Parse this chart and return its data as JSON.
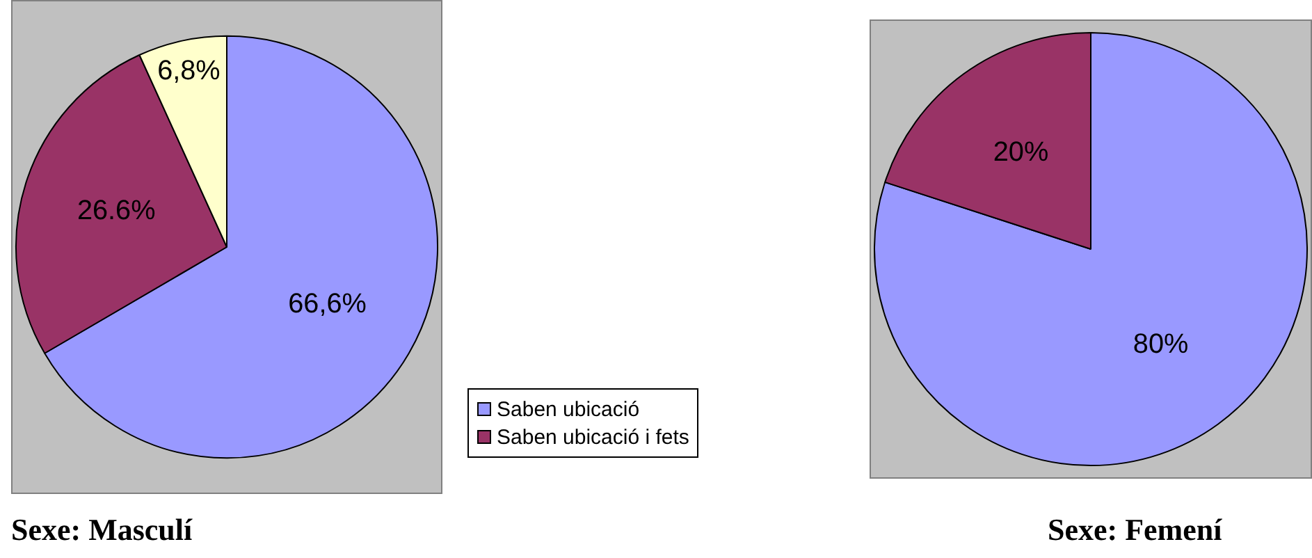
{
  "chart_data": [
    {
      "type": "pie",
      "title": "Sexe: Masculí",
      "categories": [
        "Saben ubicació",
        "Saben ubicació i fets",
        null
      ],
      "values": [
        66.6,
        26.6,
        6.8
      ],
      "colors": [
        "#9999ff",
        "#993366",
        "#ffffcc"
      ],
      "value_labels": [
        "66,6%",
        "26.6%",
        "6,8%"
      ],
      "legend": "right"
    },
    {
      "type": "pie",
      "title": "Sexe: Femení",
      "categories": [
        null,
        null
      ],
      "values": [
        80,
        20
      ],
      "colors": [
        "#9999ff",
        "#993366"
      ],
      "value_labels": [
        "80%",
        "20%"
      ],
      "legend": false
    }
  ]
}
